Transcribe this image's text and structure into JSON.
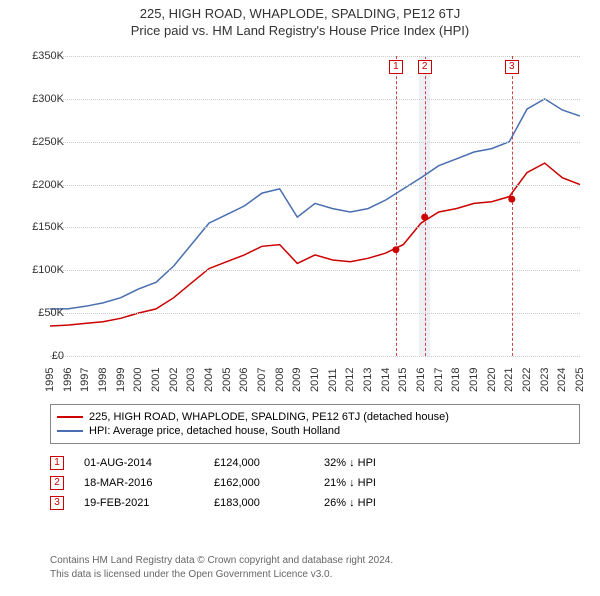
{
  "title": "225, HIGH ROAD, WHAPLODE, SPALDING, PE12 6TJ",
  "subtitle": "Price paid vs. HM Land Registry's House Price Index (HPI)",
  "chart": {
    "type": "line",
    "background_color": "#ffffff",
    "grid_color": "#cccccc",
    "x_years": [
      1995,
      1996,
      1997,
      1998,
      1999,
      2000,
      2001,
      2002,
      2003,
      2004,
      2005,
      2006,
      2007,
      2008,
      2009,
      2010,
      2011,
      2012,
      2013,
      2014,
      2015,
      2016,
      2017,
      2018,
      2019,
      2020,
      2021,
      2022,
      2023,
      2024,
      2025
    ],
    "ylim": [
      0,
      350000
    ],
    "ytick_step": 50000,
    "ytick_labels": [
      "£0",
      "£50K",
      "£100K",
      "£150K",
      "£200K",
      "£250K",
      "£300K",
      "£350K"
    ],
    "label_fontsize": 11,
    "series": [
      {
        "name": "225, HIGH ROAD, WHAPLODE, SPALDING, PE12 6TJ (detached house)",
        "color": "#cc0000",
        "values": [
          35000,
          36000,
          38000,
          40000,
          44000,
          50000,
          55000,
          68000,
          85000,
          102000,
          110000,
          118000,
          128000,
          130000,
          108000,
          118000,
          112000,
          110000,
          114000,
          120000,
          130000,
          155000,
          168000,
          172000,
          178000,
          180000,
          186000,
          214000,
          225000,
          208000,
          200000
        ]
      },
      {
        "name": "HPI: Average price, detached house, South Holland",
        "color": "#4a6fb0",
        "values": [
          55000,
          55000,
          58000,
          62000,
          68000,
          78000,
          86000,
          105000,
          130000,
          155000,
          165000,
          175000,
          190000,
          195000,
          162000,
          178000,
          172000,
          168000,
          172000,
          182000,
          195000,
          208000,
          222000,
          230000,
          238000,
          242000,
          250000,
          288000,
          300000,
          287000,
          280000
        ]
      }
    ],
    "event_markers": [
      {
        "n": "1",
        "year": 2014.58,
        "box_color": "#cc0000",
        "line_color": "#cc4444"
      },
      {
        "n": "2",
        "year": 2016.21,
        "box_color": "#cc0000",
        "line_color": "#cc4444"
      },
      {
        "n": "3",
        "year": 2021.14,
        "box_color": "#cc0000",
        "line_color": "#cc4444"
      }
    ],
    "vband": {
      "from_year": 2015.9,
      "to_year": 2016.5,
      "color": "rgba(160,170,200,0.18)"
    },
    "sale_dots": [
      {
        "year": 2014.58,
        "value": 124000,
        "color": "#cc0000"
      },
      {
        "year": 2016.21,
        "value": 162000,
        "color": "#cc0000"
      },
      {
        "year": 2021.14,
        "value": 183000,
        "color": "#cc0000"
      }
    ]
  },
  "legend": {
    "items": [
      {
        "color": "#cc0000",
        "label": "225, HIGH ROAD, WHAPLODE, SPALDING, PE12 6TJ (detached house)"
      },
      {
        "color": "#4a6fb0",
        "label": "HPI: Average price, detached house, South Holland"
      }
    ]
  },
  "events": [
    {
      "n": "1",
      "date": "01-AUG-2014",
      "price": "£124,000",
      "delta": "32% ↓ HPI",
      "box_color": "#cc0000"
    },
    {
      "n": "2",
      "date": "18-MAR-2016",
      "price": "£162,000",
      "delta": "21% ↓ HPI",
      "box_color": "#cc0000"
    },
    {
      "n": "3",
      "date": "19-FEB-2021",
      "price": "£183,000",
      "delta": "26% ↓ HPI",
      "box_color": "#cc0000"
    }
  ],
  "footnote": {
    "line1": "Contains HM Land Registry data © Crown copyright and database right 2024.",
    "line2": "This data is licensed under the Open Government Licence v3.0."
  }
}
